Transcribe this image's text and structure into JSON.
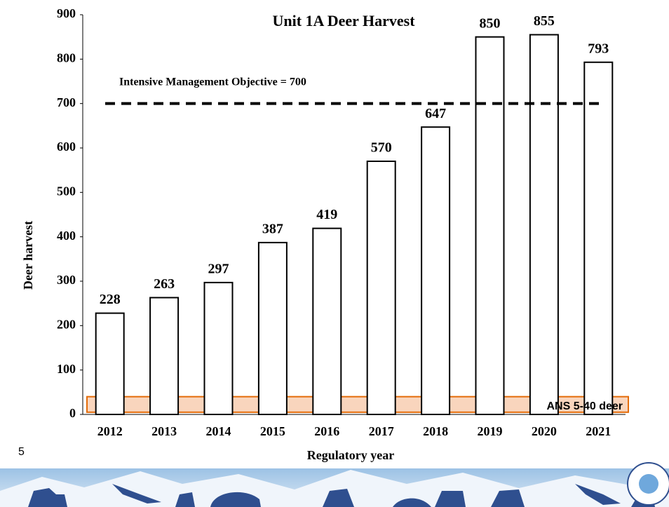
{
  "chart_data": {
    "type": "bar",
    "title": "Unit 1A Deer Harvest",
    "x_label": "Regulatory year",
    "y_label": "Deer harvest",
    "categories": [
      "2012",
      "2013",
      "2014",
      "2015",
      "2016",
      "2017",
      "2018",
      "2019",
      "2020",
      "2021"
    ],
    "values": [
      228,
      263,
      297,
      387,
      419,
      570,
      647,
      850,
      855,
      793
    ],
    "color": "#ffffff",
    "ylim": [
      0,
      900
    ],
    "yticks": [
      0,
      100,
      200,
      300,
      400,
      500,
      600,
      700,
      800,
      900
    ],
    "grid": false,
    "reference_line": {
      "value": 700,
      "label": "Intensive Management Objective = 700"
    },
    "ans_range": {
      "values": [
        5,
        40
      ],
      "label": "ANS 5-40 deer",
      "color": "#f8cbad",
      "edge": "#e46c0a"
    }
  },
  "slide_number": "5"
}
